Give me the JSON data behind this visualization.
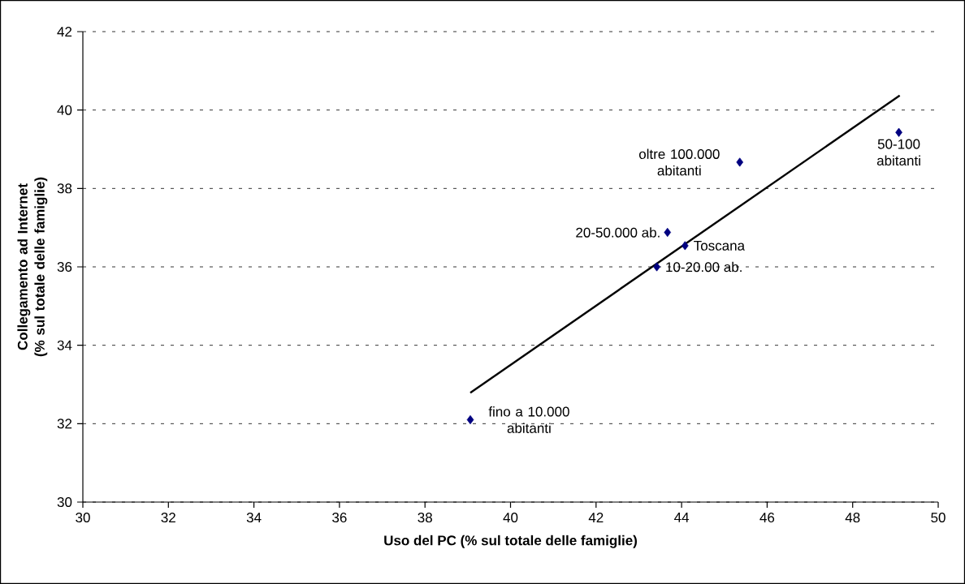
{
  "chart_data": {
    "type": "scatter",
    "xlabel": "Uso del PC (% sul totale delle famiglie)",
    "ylabel": "Collegamento ad Internet (% sul totale delle famiglie)",
    "series": [
      {
        "color": "#000080",
        "marker": "diamond",
        "x": [
          39.06,
          45.36,
          49.08,
          43.67,
          44.08,
          43.42
        ],
        "values": [
          32.1,
          38.67,
          39.43,
          36.88,
          36.54,
          36.0
        ]
      },
      {
        "type": "line",
        "color": "#000000",
        "marker": "none",
        "x": [
          39.06,
          49.1
        ],
        "values": [
          32.79,
          40.37
        ]
      }
    ],
    "annotations": [
      {
        "text": "fino a 10.000 abitanti",
        "x": 39.06,
        "y": 32.1
      },
      {
        "text": "oltre 100.000 abitanti",
        "x": 45.36,
        "y": 38.67
      },
      {
        "text": "50-100 abitanti",
        "x": 49.08,
        "y": 39.43
      },
      {
        "text": "20-50.000 ab.",
        "x": 43.67,
        "y": 36.88
      },
      {
        "text": "Toscana",
        "x": 44.08,
        "y": 36.54
      },
      {
        "text": "10-20.00 ab.",
        "x": 43.42,
        "y": 36.0
      }
    ],
    "xlim": [
      30,
      50
    ],
    "ylim": [
      30,
      42
    ],
    "xticks": [
      30,
      32,
      34,
      36,
      38,
      40,
      42,
      44,
      46,
      48,
      50
    ],
    "yticks": [
      30,
      32,
      34,
      36,
      38,
      40,
      42
    ],
    "grid": "y"
  }
}
